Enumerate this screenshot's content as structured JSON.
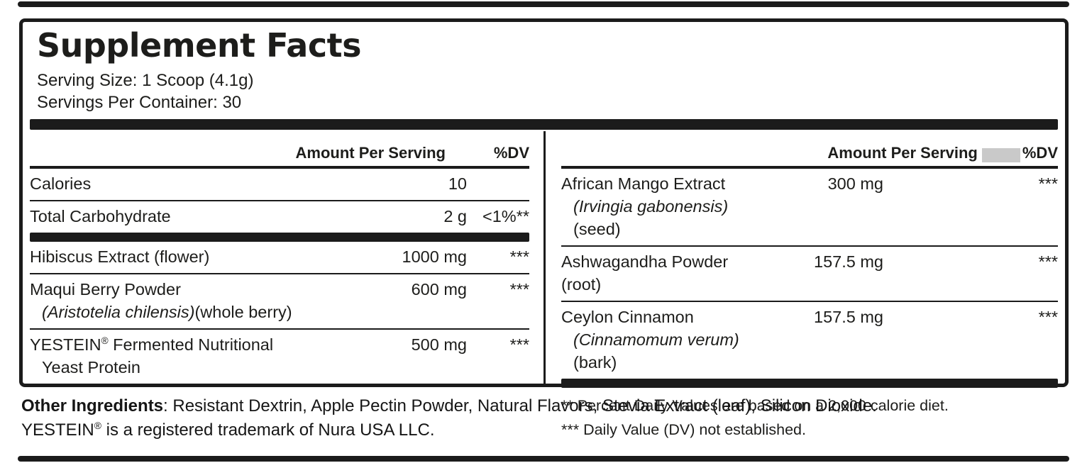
{
  "colors": {
    "ink": "#1D1D1B",
    "panel_background": "#FFFFFF",
    "gray_placeholder": "#C9C9C9",
    "edge_bar": "#1B1B1B"
  },
  "panel": {
    "title": "Supplement Facts",
    "serving_size": "Serving Size: 1 Scoop (4.1g)",
    "servings_per_container": "Servings Per Container: 30"
  },
  "left": {
    "header": {
      "amount": "Amount Per Serving",
      "dv": "%DV"
    },
    "rows": [
      {
        "name": "Calories",
        "amount": "10",
        "dv": ""
      },
      {
        "name": "Total Carbohydrate",
        "amount": "2 g",
        "dv": "<1%**"
      },
      {
        "name": "Hibiscus Extract (flower)",
        "amount": "1000 mg",
        "dv": "***"
      },
      {
        "name": "Maqui Berry Powder",
        "latin": "(Aristotelia chilensis)",
        "suffix": "(whole berry)",
        "amount": "600 mg",
        "dv": "***"
      },
      {
        "name_pre": "YESTEIN",
        "name_sup": "®",
        "name_post": " Fermented Nutritional",
        "line2": "Yeast Protein",
        "amount": "500 mg",
        "dv": "***"
      }
    ]
  },
  "right": {
    "header": {
      "amount": "Amount Per Serving",
      "dv": "%DV"
    },
    "rows": [
      {
        "name": "African Mango Extract",
        "latin": "(Irvingia gabonensis)",
        "suffix": "(seed)",
        "amount": "300 mg",
        "dv": "***"
      },
      {
        "name": "Ashwagandha Powder (root)",
        "amount": "157.5 mg",
        "dv": "***"
      },
      {
        "name": "Ceylon Cinnamon",
        "latin": "(Cinnamomum verum)",
        "suffix": "(bark)",
        "amount": "157.5 mg",
        "dv": "***"
      }
    ],
    "footnotes": [
      "** Percent Daily Values are based on a 2,000 calorie diet.",
      "*** Daily Value (DV) not established."
    ]
  },
  "footer": {
    "other_label": "Other Ingredients",
    "other_rest": ": Resistant Dextrin, Apple Pectin Powder, Natural Flavors, Stevia Extract (leaf), Silicon Dioxide.",
    "tm_pre": "YESTEIN",
    "tm_sup": "®",
    "tm_rest": " is a registered trademark of Nura USA LLC."
  }
}
